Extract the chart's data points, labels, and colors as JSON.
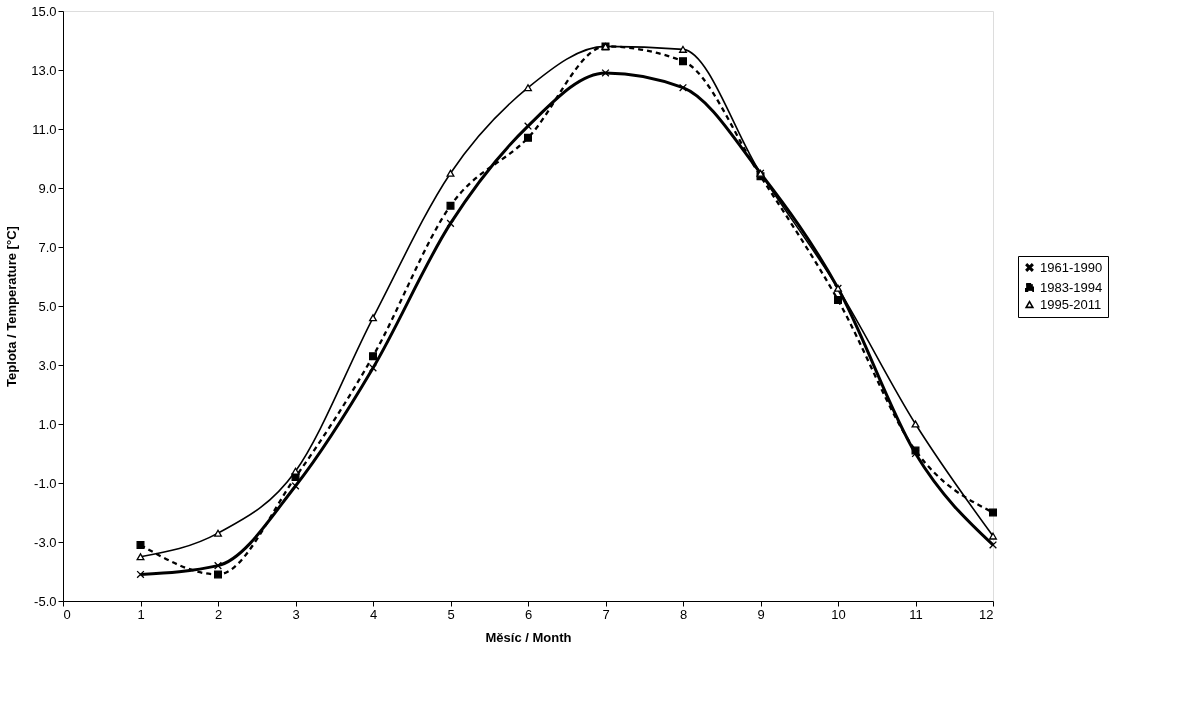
{
  "chart_data": {
    "type": "line",
    "xlabel": "Měsíc / Month",
    "ylabel": "Teplota / Temperature [°C]",
    "x": [
      1,
      2,
      3,
      4,
      5,
      6,
      7,
      8,
      9,
      10,
      11,
      12
    ],
    "series": [
      {
        "name": "1961-1990",
        "color": "#000000",
        "marker": "cross",
        "line_style": "solid",
        "values": [
          -4.1,
          -3.8,
          -1.1,
          2.9,
          7.8,
          11.1,
          12.9,
          12.4,
          9.5,
          5.6,
          0.0,
          -3.1
        ]
      },
      {
        "name": "1983-1994",
        "color": "#000000",
        "marker": "square",
        "line_style": "dashed",
        "values": [
          -3.1,
          -4.1,
          -0.8,
          3.3,
          8.4,
          10.7,
          13.8,
          13.3,
          9.4,
          5.2,
          0.1,
          -2.0
        ]
      },
      {
        "name": "1995-2011",
        "color": "#000000",
        "marker": "triangle",
        "line_style": "solid",
        "values": [
          -3.5,
          -2.7,
          -0.6,
          4.6,
          9.5,
          12.4,
          13.8,
          13.7,
          9.5,
          5.6,
          1.0,
          -2.8
        ]
      }
    ],
    "xlim": [
      0,
      12
    ],
    "xticks": [
      0,
      1,
      2,
      3,
      4,
      5,
      6,
      7,
      8,
      9,
      10,
      11,
      12
    ],
    "ylim": [
      -5,
      15
    ],
    "yticks": [
      {
        "value": -5,
        "label": "-5.0"
      },
      {
        "value": -3,
        "label": "-3.0"
      },
      {
        "value": -1,
        "label": "-1.0"
      },
      {
        "value": 1,
        "label": "1.0"
      },
      {
        "value": 3,
        "label": "3.0"
      },
      {
        "value": 5,
        "label": "5.0"
      },
      {
        "value": 7,
        "label": "7.0"
      },
      {
        "value": 9,
        "label": "9.0"
      },
      {
        "value": 11,
        "label": "11.0"
      },
      {
        "value": 13,
        "label": "13.0"
      },
      {
        "value": 15,
        "label": "15.0"
      }
    ],
    "grid": false,
    "legend": "right"
  }
}
